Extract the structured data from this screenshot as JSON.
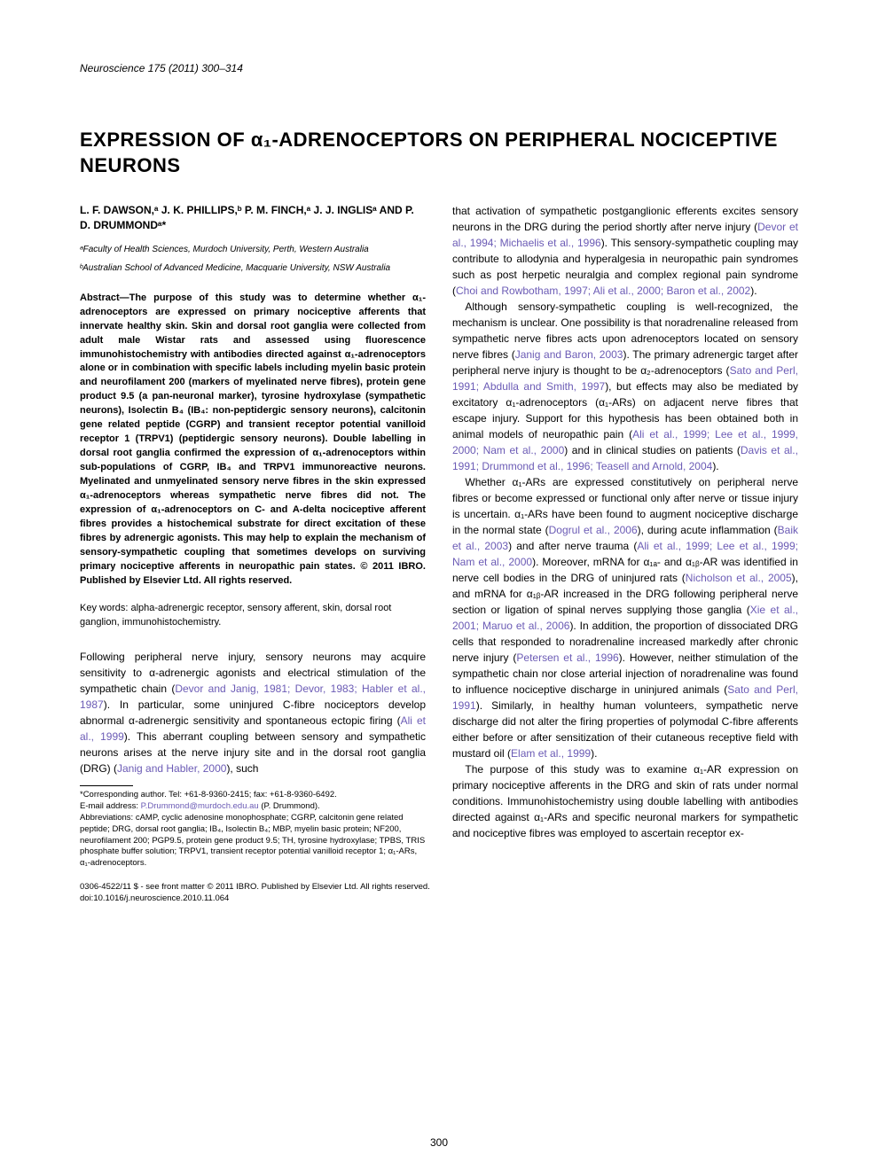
{
  "header": {
    "citation": "Neuroscience 175 (2011) 300–314"
  },
  "title": "EXPRESSION OF α₁-ADRENOCEPTORS ON PERIPHERAL NOCICEPTIVE NEURONS",
  "authors": "L. F. DAWSON,ᵃ J. K. PHILLIPS,ᵇ P. M. FINCH,ᵃ J. J. INGLISᵃ AND P. D. DRUMMONDᵃ*",
  "affiliations": [
    "ᵃFaculty of Health Sciences, Murdoch University, Perth, Western Australia",
    "ᵇAustralian School of Advanced Medicine, Macquarie University, NSW Australia"
  ],
  "abstract": "Abstract—The purpose of this study was to determine whether α₁-adrenoceptors are expressed on primary nociceptive afferents that innervate healthy skin. Skin and dorsal root ganglia were collected from adult male Wistar rats and assessed using fluorescence immunohistochemistry with antibodies directed against α₁-adrenoceptors alone or in combination with specific labels including myelin basic protein and neurofilament 200 (markers of myelinated nerve fibres), protein gene product 9.5 (a pan-neuronal marker), tyrosine hydroxylase (sympathetic neurons), Isolectin B₄ (IB₄: non-peptidergic sensory neurons), calcitonin gene related peptide (CGRP) and transient receptor potential vanilloid receptor 1 (TRPV1) (peptidergic sensory neurons). Double labelling in dorsal root ganglia confirmed the expression of α₁-adrenoceptors within sub-populations of CGRP, IB₄ and TRPV1 immunoreactive neurons. Myelinated and unmyelinated sensory nerve fibres in the skin expressed α₁-adrenoceptors whereas sympathetic nerve fibres did not. The expression of α₁-adrenoceptors on C- and A-delta nociceptive afferent fibres provides a histochemical substrate for direct excitation of these fibres by adrenergic agonists. This may help to explain the mechanism of sensory-sympathetic coupling that sometimes develops on surviving primary nociceptive afferents in neuropathic pain states. © 2011 IBRO. Published by Elsevier Ltd. All rights reserved.",
  "keywords": "Key words: alpha-adrenergic receptor, sensory afferent, skin, dorsal root ganglion, immunohistochemistry.",
  "left_body": {
    "p1a": "Following peripheral nerve injury, sensory neurons may acquire sensitivity to α-adrenergic agonists and electrical stimulation of the sympathetic chain (",
    "p1_link1": "Devor and Janig, 1981; Devor, 1983; Habler et al., 1987",
    "p1b": "). In particular, some uninjured C-fibre nociceptors develop abnormal α-adrenergic sensitivity and spontaneous ectopic firing (",
    "p1_link2": "Ali et al., 1999",
    "p1c": "). This aberrant coupling between sensory and sympathetic neurons arises at the nerve injury site and in the dorsal root ganglia (DRG) (",
    "p1_link3": "Janig and Habler, 2000",
    "p1d": "), such"
  },
  "footnotes": {
    "corresponding": "*Corresponding author. Tel: +61-8-9360-2415; fax: +61-8-9360-6492.",
    "email_label": "E-mail address: ",
    "email_link": "P.Drummond@murdoch.edu.au",
    "email_tail": " (P. Drummond).",
    "abbrev": "Abbreviations: cAMP, cyclic adenosine monophosphate; CGRP, calcitonin gene related peptide; DRG, dorsal root ganglia; IB₄, Isolectin B₄; MBP, myelin basic protein; NF200, neurofilament 200; PGP9.5, protein gene product 9.5; TH, tyrosine hydroxylase; TPBS, TRIS phosphate buffer solution; TRPV1, transient receptor potential vanilloid receptor 1; α₁-ARs, α₁-adrenoceptors."
  },
  "right_body": {
    "p1a": "that activation of sympathetic postganglionic efferents excites sensory neurons in the DRG during the period shortly after nerve injury (",
    "p1_link1": "Devor et al., 1994; Michaelis et al., 1996",
    "p1b": "). This sensory-sympathetic coupling may contribute to allodynia and hyperalgesia in neuropathic pain syndromes such as post herpetic neuralgia and complex regional pain syndrome (",
    "p1_link2": "Choi and Rowbotham, 1997; Ali et al., 2000; Baron et al., 2002",
    "p1c": ").",
    "p2a": "Although sensory-sympathetic coupling is well-recognized, the mechanism is unclear. One possibility is that noradrenaline released from sympathetic nerve fibres acts upon adrenoceptors located on sensory nerve fibres (",
    "p2_link1": "Janig and Baron, 2003",
    "p2b": "). The primary adrenergic target after peripheral nerve injury is thought to be α₂-adrenoceptors (",
    "p2_link2": "Sato and Perl, 1991; Abdulla and Smith, 1997",
    "p2c": "), but effects may also be mediated by excitatory α₁-adrenoceptors (α₁-ARs) on adjacent nerve fibres that escape injury. Support for this hypothesis has been obtained both in animal models of neuropathic pain (",
    "p2_link3": "Ali et al., 1999; Lee et al., 1999, 2000; Nam et al., 2000",
    "p2d": ") and in clinical studies on patients (",
    "p2_link4": "Davis et al., 1991; Drummond et al., 1996; Teasell and Arnold, 2004",
    "p2e": ").",
    "p3a": "Whether α₁-ARs are expressed constitutively on peripheral nerve fibres or become expressed or functional only after nerve or tissue injury is uncertain. α₁-ARs have been found to augment nociceptive discharge in the normal state (",
    "p3_link1": "Dogrul et al., 2006",
    "p3b": "), during acute inflammation (",
    "p3_link2": "Baik et al., 2003",
    "p3c": ") and after nerve trauma (",
    "p3_link3": "Ali et al., 1999; Lee et al., 1999; Nam et al., 2000",
    "p3d": "). Moreover, mRNA for α₁ₐ- and α₁ᵦ-AR was identified in nerve cell bodies in the DRG of uninjured rats (",
    "p3_link4": "Nicholson et al., 2005",
    "p3e": "), and mRNA for α₁ᵦ-AR increased in the DRG following peripheral nerve section or ligation of spinal nerves supplying those ganglia (",
    "p3_link5": "Xie et al., 2001; Maruo et al., 2006",
    "p3f": "). In addition, the proportion of dissociated DRG cells that responded to noradrenaline increased markedly after chronic nerve injury (",
    "p3_link6": "Petersen et al., 1996",
    "p3g": "). However, neither stimulation of the sympathetic chain nor close arterial injection of noradrenaline was found to influence nociceptive discharge in uninjured animals (",
    "p3_link7": "Sato and Perl, 1991",
    "p3h": "). Similarly, in healthy human volunteers, sympathetic nerve discharge did not alter the firing properties of polymodal C-fibre afferents either before or after sensitization of their cutaneous receptive field with mustard oil (",
    "p3_link8": "Elam et al., 1999",
    "p3i": ").",
    "p4": "The purpose of this study was to examine α₁-AR expression on primary nociceptive afferents in the DRG and skin of rats under normal conditions. Immunohistochemistry using double labelling with antibodies directed against α₁-ARs and specific neuronal markers for sympathetic and nociceptive fibres was employed to ascertain receptor ex-"
  },
  "bottom": {
    "copyright": "0306-4522/11 $ - see front matter © 2011 IBRO. Published by Elsevier Ltd. All rights reserved.",
    "doi": "doi:10.1016/j.neuroscience.2010.11.064"
  },
  "page_number": "300"
}
